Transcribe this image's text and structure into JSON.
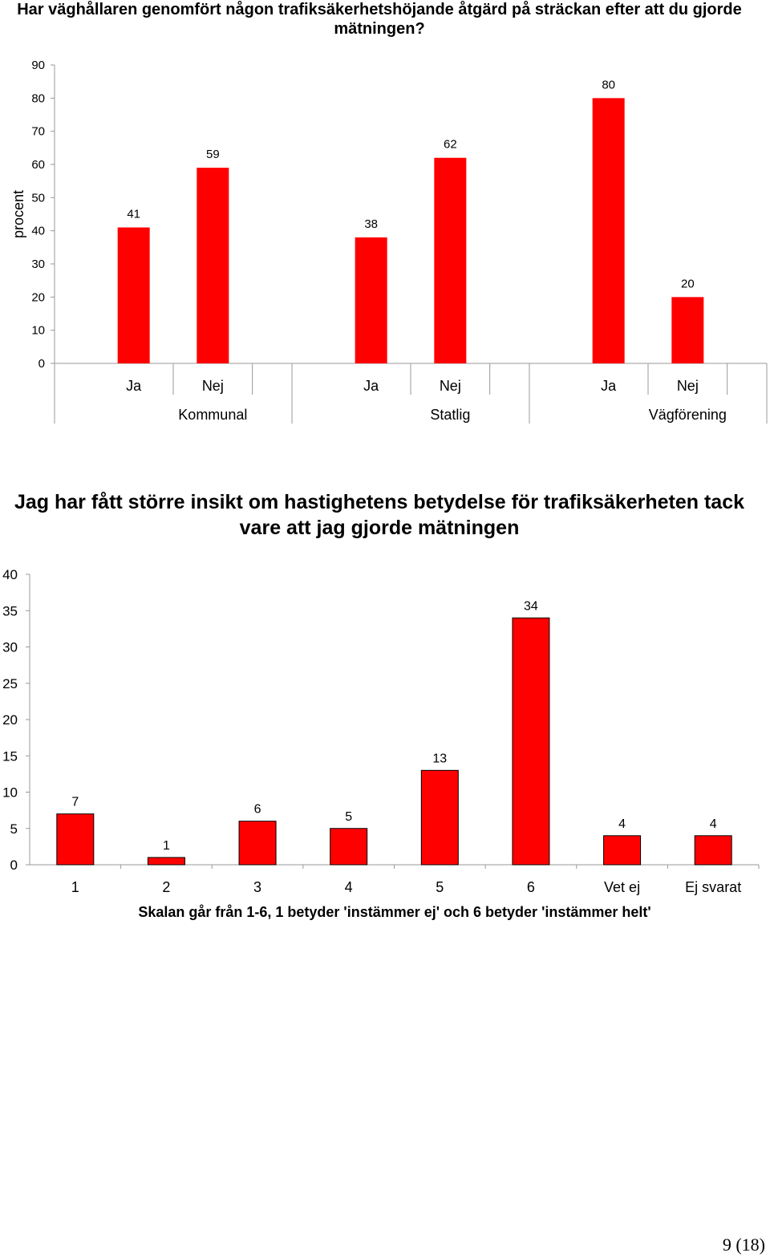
{
  "chart_data": [
    {
      "type": "bar",
      "title": "Har väghållaren genomfört någon trafiksäkerhetshöjande åtgärd på sträckan efter att du gjorde mätningen?",
      "ylabel": "procent",
      "ylim": [
        0,
        90
      ],
      "yticks": [
        0,
        10,
        20,
        30,
        40,
        50,
        60,
        70,
        80,
        90
      ],
      "groups": [
        "Kommunal",
        "Statlig",
        "Vägförening"
      ],
      "subcategories": [
        "Ja",
        "Nej"
      ],
      "values": [
        [
          41,
          59
        ],
        [
          38,
          62
        ],
        [
          80,
          20
        ]
      ],
      "bar_color": "#ff0000",
      "grid": false
    },
    {
      "type": "bar",
      "title": "Jag har fått större insikt om hastighetens betydelse för trafiksäkerheten tack vare att jag gjorde mätningen",
      "xlabel": "Skalan går från 1-6, 1 betyder 'instämmer ej' och 6 betyder 'instämmer helt'",
      "ylim": [
        0,
        40
      ],
      "yticks": [
        0,
        5,
        10,
        15,
        20,
        25,
        30,
        35,
        40
      ],
      "categories": [
        "1",
        "2",
        "3",
        "4",
        "5",
        "6",
        "Vet ej",
        "Ej svarat"
      ],
      "values": [
        7,
        1,
        6,
        5,
        13,
        34,
        4,
        4
      ],
      "bar_color": "#ff0000",
      "grid": false
    }
  ],
  "page": {
    "number": "9",
    "total": "(18)"
  }
}
